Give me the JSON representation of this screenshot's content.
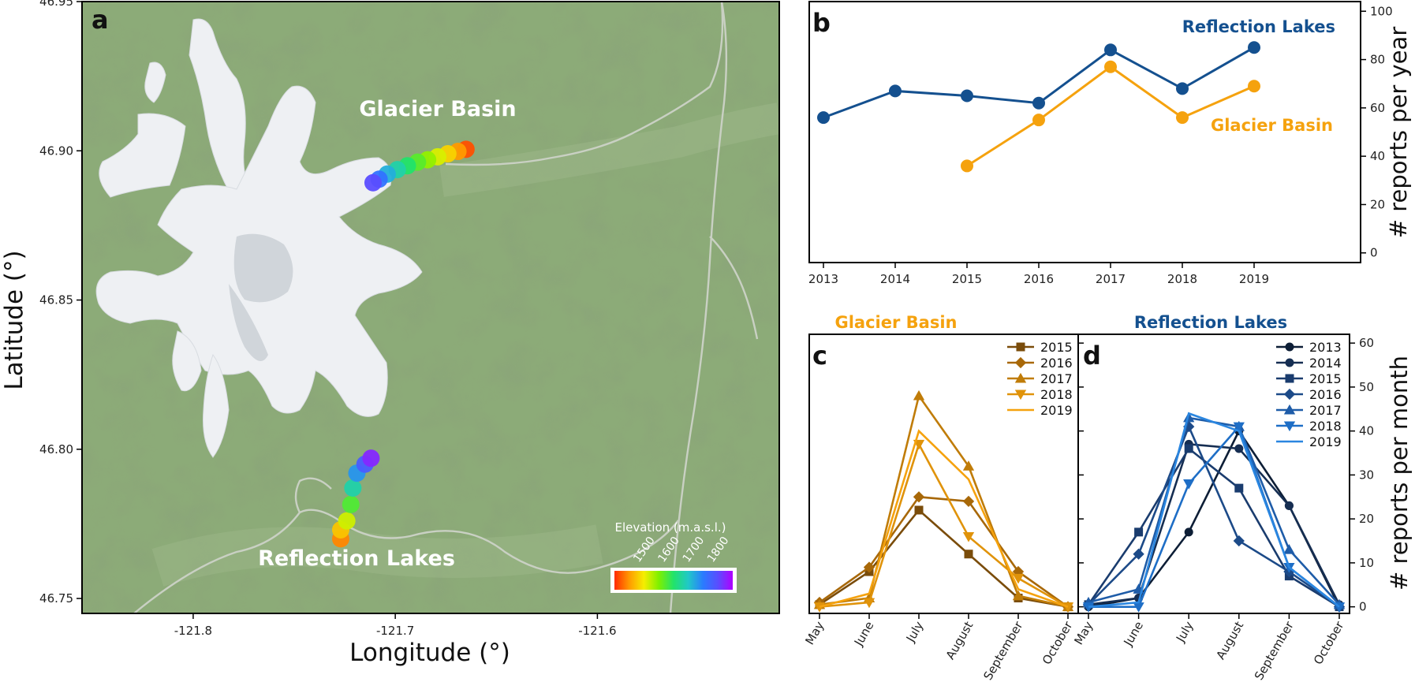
{
  "chart_data": [
    {
      "panel": "a",
      "type": "scatter",
      "xlabel": "Longitude (°)",
      "ylabel": "Latitude (°)",
      "xlim": [
        -121.855,
        -121.51
      ],
      "ylim": [
        46.745,
        46.95
      ],
      "x_ticks": [
        -121.8,
        -121.7,
        -121.6
      ],
      "y_ticks": [
        46.75,
        46.8,
        46.85,
        46.9,
        46.95
      ],
      "x_tick_labels": [
        "-121.8",
        "-121.7",
        "-121.6"
      ],
      "y_tick_labels": [
        "46.75",
        "46.80",
        "46.85",
        "46.90",
        "46.95"
      ],
      "annotations": [
        "Glacier Basin",
        "Reflection Lakes"
      ],
      "colorbar": {
        "title": "Elevation (m.a.s.l.)",
        "ticks": [
          1500,
          1600,
          1700,
          1800
        ],
        "tick_labels": [
          "1500",
          "1600",
          "1700",
          "1800"
        ],
        "range": [
          1420,
          1900
        ],
        "colors": [
          "#ff2a00",
          "#ff9a00",
          "#f5ee00",
          "#7ef000",
          "#22e36a",
          "#20c8c8",
          "#2a7bff",
          "#5a4dff",
          "#b000ff"
        ]
      },
      "series": [
        {
          "name": "Glacier Basin",
          "points": [
            {
              "x": -121.665,
              "y": 46.9005,
              "elevation": 1440
            },
            {
              "x": -121.669,
              "y": 46.8998,
              "elevation": 1480
            },
            {
              "x": -121.674,
              "y": 46.899,
              "elevation": 1520
            },
            {
              "x": -121.679,
              "y": 46.898,
              "elevation": 1555
            },
            {
              "x": -121.684,
              "y": 46.897,
              "elevation": 1590
            },
            {
              "x": -121.689,
              "y": 46.8962,
              "elevation": 1625
            },
            {
              "x": -121.694,
              "y": 46.895,
              "elevation": 1660
            },
            {
              "x": -121.699,
              "y": 46.8937,
              "elevation": 1700
            },
            {
              "x": -121.704,
              "y": 46.8922,
              "elevation": 1740
            },
            {
              "x": -121.708,
              "y": 46.8905,
              "elevation": 1790
            },
            {
              "x": -121.711,
              "y": 46.8893,
              "elevation": 1840
            }
          ]
        },
        {
          "name": "Reflection Lakes",
          "points": [
            {
              "x": -121.727,
              "y": 46.77,
              "elevation": 1470
            },
            {
              "x": -121.727,
              "y": 46.773,
              "elevation": 1510
            },
            {
              "x": -121.724,
              "y": 46.776,
              "elevation": 1560
            },
            {
              "x": -121.722,
              "y": 46.7815,
              "elevation": 1630
            },
            {
              "x": -121.721,
              "y": 46.787,
              "elevation": 1700
            },
            {
              "x": -121.719,
              "y": 46.792,
              "elevation": 1760
            },
            {
              "x": -121.715,
              "y": 46.795,
              "elevation": 1820
            },
            {
              "x": -121.712,
              "y": 46.797,
              "elevation": 1870
            }
          ]
        }
      ]
    },
    {
      "panel": "b",
      "type": "line",
      "ylabel": "# reports per year",
      "x": [
        2013,
        2014,
        2015,
        2016,
        2017,
        2018,
        2019
      ],
      "ylim": [
        -4,
        104
      ],
      "y_ticks": [
        0,
        20,
        40,
        60,
        80,
        100
      ],
      "series": [
        {
          "name": "Reflection Lakes",
          "color": "#14508f",
          "values": [
            56,
            67,
            65,
            62,
            84,
            68,
            85
          ]
        },
        {
          "name": "Glacier Basin",
          "color": "#f5a20e",
          "values": [
            null,
            null,
            36,
            55,
            77,
            56,
            69
          ]
        }
      ]
    },
    {
      "panel": "c",
      "type": "line",
      "title": "Glacier Basin",
      "categories": [
        "May",
        "June",
        "July",
        "August",
        "September",
        "October"
      ],
      "ylim": [
        -1.5,
        62
      ],
      "series": [
        {
          "name": "2015",
          "marker": "square",
          "color": "#7a4c0a",
          "values": [
            0.5,
            8,
            22,
            12,
            2,
            0
          ]
        },
        {
          "name": "2016",
          "marker": "diamond",
          "color": "#a86808",
          "values": [
            1,
            9,
            25,
            24,
            8,
            0
          ]
        },
        {
          "name": "2017",
          "marker": "triangle-up",
          "color": "#c07c08",
          "values": [
            0.5,
            2,
            48,
            32,
            2.5,
            0
          ]
        },
        {
          "name": "2018",
          "marker": "triangle-down",
          "color": "#e0930a",
          "values": [
            0,
            1,
            37,
            16,
            6.5,
            0
          ]
        },
        {
          "name": "2019",
          "marker": "none",
          "color": "#f5a20e",
          "values": [
            0,
            3,
            40,
            29,
            4,
            0
          ]
        }
      ]
    },
    {
      "panel": "d",
      "type": "line",
      "title": "Reflection Lakes",
      "ylabel": "# reports per month",
      "categories": [
        "May",
        "June",
        "July",
        "August",
        "September",
        "October"
      ],
      "ylim": [
        -1.5,
        62
      ],
      "y_ticks": [
        0,
        10,
        20,
        30,
        40,
        50,
        60
      ],
      "series": [
        {
          "name": "2013",
          "marker": "circle",
          "color": "#0d1e36",
          "values": [
            0,
            2,
            17,
            40,
            23,
            0
          ]
        },
        {
          "name": "2014",
          "marker": "circle",
          "color": "#162e52",
          "values": [
            0.5,
            2,
            37,
            36,
            23,
            0.5
          ]
        },
        {
          "name": "2015",
          "marker": "square",
          "color": "#1a3c6e",
          "values": [
            0.5,
            17,
            36,
            27,
            7,
            0
          ]
        },
        {
          "name": "2016",
          "marker": "diamond",
          "color": "#1c4a88",
          "values": [
            0.5,
            12,
            41,
            15,
            8,
            0
          ]
        },
        {
          "name": "2017",
          "marker": "triangle-up",
          "color": "#1e5ca8",
          "values": [
            1,
            4,
            43,
            41,
            13,
            0.5
          ]
        },
        {
          "name": "2018",
          "marker": "triangle-down",
          "color": "#1e6ec6",
          "values": [
            0,
            0,
            28,
            41,
            9,
            0
          ]
        },
        {
          "name": "2019",
          "marker": "none",
          "color": "#2a86e0",
          "values": [
            0,
            1,
            44,
            40,
            9,
            0
          ]
        }
      ]
    }
  ],
  "panel_letters": {
    "a": "a",
    "b": "b",
    "c": "c",
    "d": "d"
  },
  "colors": {
    "map_background": "#8cab78",
    "glacier": "#eef0f3",
    "road": "#c4cbbf",
    "reflection": "#14508f",
    "glacier_basin": "#f5a20e"
  }
}
